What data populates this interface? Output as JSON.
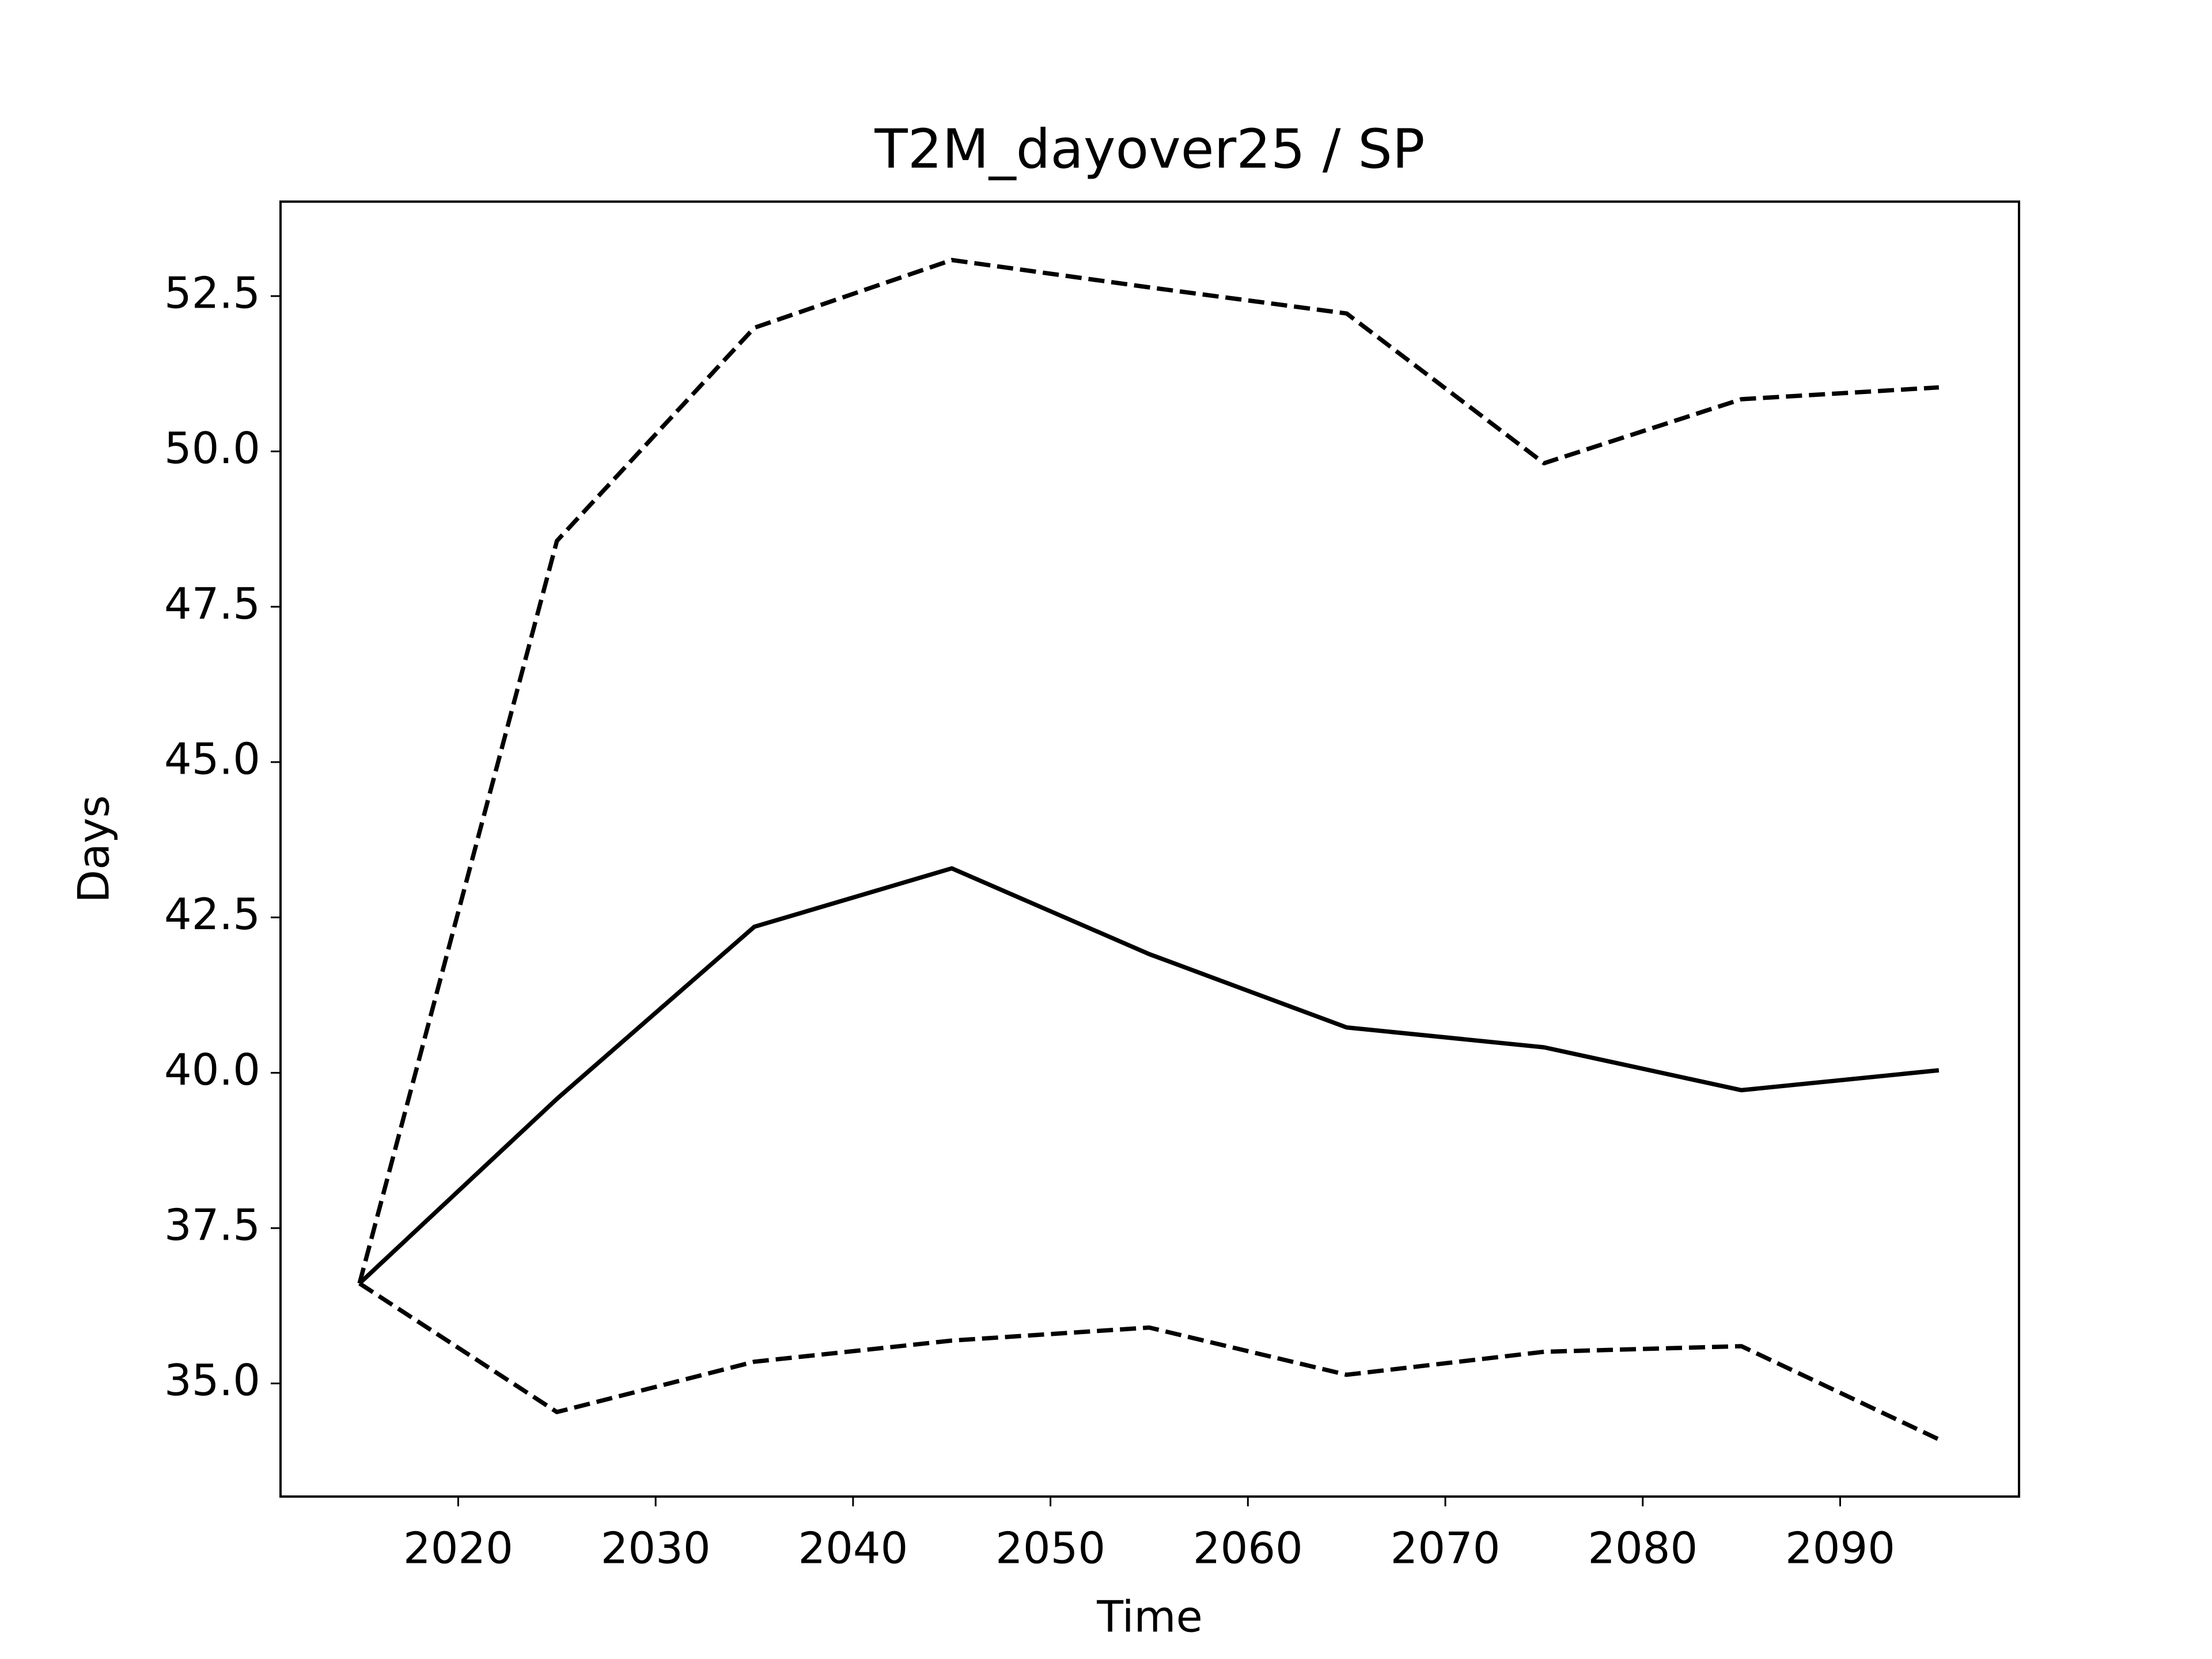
{
  "chart_data": {
    "type": "line",
    "title": "T2M_dayover25 / SP",
    "xlabel": "Time",
    "ylabel": "Days",
    "x": [
      2015,
      2025,
      2035,
      2045,
      2055,
      2065,
      2075,
      2085,
      2095
    ],
    "series": [
      {
        "color": "#000000",
        "dash": "solid",
        "values": [
          36.61,
          39.58,
          42.35,
          43.29,
          41.91,
          40.73,
          40.41,
          39.72,
          40.04
        ]
      },
      {
        "color": "#000000",
        "dash": "dashed",
        "values": [
          36.61,
          48.56,
          51.99,
          53.08,
          52.64,
          52.22,
          49.81,
          50.84,
          51.03
        ]
      },
      {
        "color": "#000000",
        "dash": "dashed",
        "values": [
          36.61,
          34.54,
          35.35,
          35.69,
          35.9,
          35.14,
          35.51,
          35.6,
          34.1
        ]
      }
    ],
    "xlim": [
      2011,
      2099.06
    ],
    "xticks": [
      2020,
      2030,
      2040,
      2050,
      2060,
      2070,
      2080,
      2090
    ],
    "ylim": [
      33.18,
      54.02
    ],
    "yticks": [
      {
        "value": 35,
        "label": "35.0"
      },
      37.5,
      {
        "value": 40,
        "label": "40.0"
      },
      42.5,
      {
        "value": 45,
        "label": "45.0"
      },
      47.5,
      {
        "value": 50,
        "label": "50.0"
      },
      52.5
    ],
    "grid": false
  }
}
